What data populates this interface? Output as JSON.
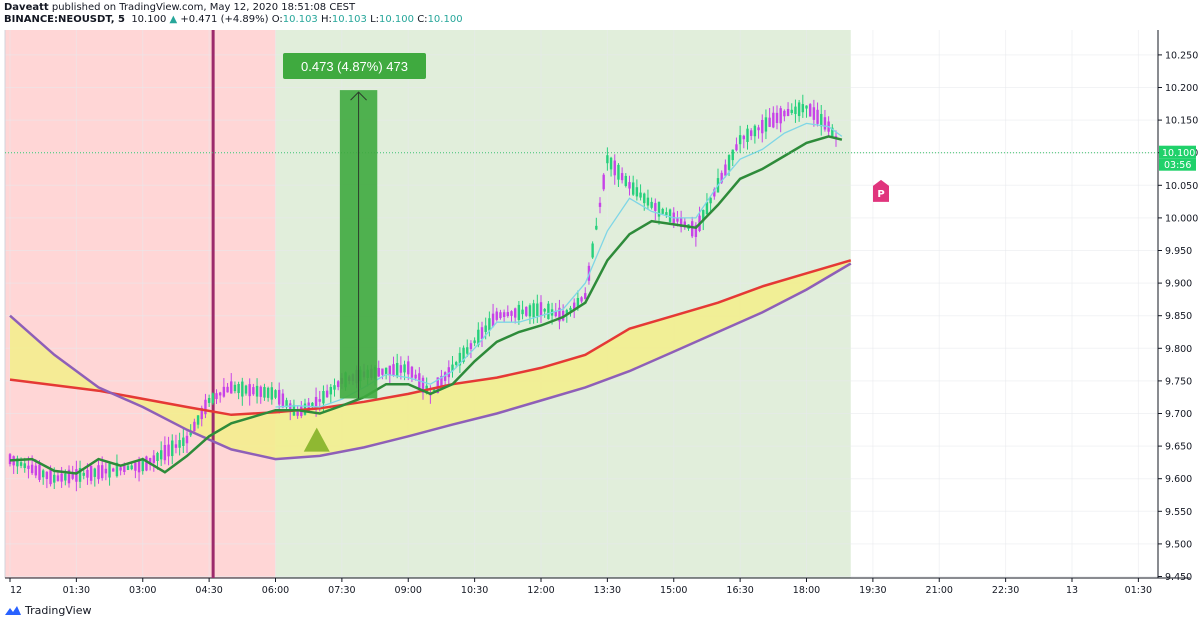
{
  "header": {
    "author": "Daveatt",
    "published_line": " published on TradingView.com, May 12, 2020 18:51:08 CEST",
    "symbol": "BINANCE:NEOUSDT, 5",
    "last": "10.100",
    "change": "+0.471 (+4.89%)",
    "open_label": "O:",
    "open": "10.103",
    "high_label": "H:",
    "high": "10.103",
    "low_label": "L:",
    "low": "10.100",
    "close_label": "C:",
    "close": "10.100"
  },
  "footer": {
    "brand": "TradingView",
    "logo_icon": "tradingview-logo-icon"
  },
  "colors": {
    "bull": "#26d07c",
    "bear": "#c743e8",
    "red_zone": "#ffd6d6",
    "green_zone": "#e1eedb",
    "ema_slow": "#e53935",
    "ema_purple": "#8e5fb8",
    "fill": "#f3ef8a",
    "ema_green": "#2e8b3a",
    "ema_cyan": "#7fd6e6",
    "session_line": "#9c2a6b",
    "measure": "#3faa3f",
    "signal_triangle": "#8fb832",
    "price_tag": "#1fd16a",
    "p_marker": "#e0357d"
  },
  "chart_data": {
    "type": "line",
    "title": "",
    "xlabel": "",
    "ylabel": "",
    "ylim": [
      9.43,
      10.275
    ],
    "x_ticks": [
      "12",
      "01:30",
      "03:00",
      "04:30",
      "06:00",
      "07:30",
      "09:00",
      "10:30",
      "12:00",
      "13:30",
      "15:00",
      "16:30",
      "18:00",
      "19:30",
      "21:00",
      "22:30",
      "13",
      "01:30"
    ],
    "y_ticks": [
      "10.250",
      "10.200",
      "10.150",
      "10.100",
      "10.050",
      "10.000",
      "9.950",
      "9.900",
      "9.850",
      "9.800",
      "9.750",
      "9.700",
      "9.650",
      "9.600",
      "9.550",
      "9.500",
      "9.450"
    ],
    "current_price_label": "10.100",
    "countdown_label": "03:56",
    "measure_label": "0.473 (4.87%) 473",
    "measure_range": [
      9.723,
      10.196
    ],
    "zones": [
      {
        "name": "bearish-session",
        "from": "12",
        "to": "06:00"
      },
      {
        "name": "bullish-session",
        "from": "06:00",
        "to": "19:00"
      }
    ],
    "session_marker_time": "04:30",
    "signal_marker": {
      "shape": "triangle-up",
      "time": "07:00",
      "price": 9.66
    },
    "pivot_marker": {
      "text": "P",
      "time": "20:00",
      "price": 10.04
    },
    "series": [
      {
        "key": "ema_red",
        "points": [
          [
            0,
            9.752
          ],
          [
            2,
            9.735
          ],
          [
            4,
            9.71
          ],
          [
            5,
            9.698
          ],
          [
            6,
            9.702
          ],
          [
            7,
            9.708
          ],
          [
            8,
            9.718
          ],
          [
            9,
            9.73
          ],
          [
            10,
            9.745
          ],
          [
            11,
            9.755
          ],
          [
            12,
            9.77
          ],
          [
            13,
            9.79
          ],
          [
            13.5,
            9.81
          ],
          [
            14,
            9.83
          ],
          [
            15,
            9.85
          ],
          [
            16,
            9.87
          ],
          [
            17,
            9.895
          ],
          [
            18,
            9.915
          ],
          [
            19,
            9.935
          ]
        ]
      },
      {
        "key": "ema_purple",
        "points": [
          [
            0,
            9.85
          ],
          [
            1,
            9.79
          ],
          [
            2,
            9.74
          ],
          [
            3,
            9.71
          ],
          [
            4,
            9.675
          ],
          [
            5,
            9.645
          ],
          [
            6,
            9.63
          ],
          [
            7,
            9.635
          ],
          [
            8,
            9.648
          ],
          [
            9,
            9.665
          ],
          [
            10,
            9.683
          ],
          [
            11,
            9.7
          ],
          [
            12,
            9.72
          ],
          [
            13,
            9.74
          ],
          [
            14,
            9.765
          ],
          [
            15,
            9.795
          ],
          [
            16,
            9.825
          ],
          [
            17,
            9.855
          ],
          [
            18,
            9.89
          ],
          [
            19,
            9.93
          ]
        ]
      },
      {
        "key": "ema_green",
        "points": [
          [
            0,
            9.628
          ],
          [
            0.5,
            9.63
          ],
          [
            1,
            9.612
          ],
          [
            1.5,
            9.608
          ],
          [
            2,
            9.63
          ],
          [
            2.5,
            9.62
          ],
          [
            3,
            9.63
          ],
          [
            3.5,
            9.61
          ],
          [
            4,
            9.635
          ],
          [
            4.5,
            9.665
          ],
          [
            5,
            9.685
          ],
          [
            5.5,
            9.695
          ],
          [
            6,
            9.705
          ],
          [
            6.5,
            9.705
          ],
          [
            7,
            9.7
          ],
          [
            7.5,
            9.712
          ],
          [
            8,
            9.725
          ],
          [
            8.5,
            9.745
          ],
          [
            9,
            9.745
          ],
          [
            9.5,
            9.73
          ],
          [
            10,
            9.745
          ],
          [
            10.5,
            9.78
          ],
          [
            11,
            9.81
          ],
          [
            11.5,
            9.825
          ],
          [
            12,
            9.835
          ],
          [
            12.5,
            9.848
          ],
          [
            13,
            9.87
          ],
          [
            13.5,
            9.935
          ],
          [
            14,
            9.975
          ],
          [
            14.5,
            9.995
          ],
          [
            15,
            9.99
          ],
          [
            15.5,
            9.985
          ],
          [
            16,
            10.02
          ],
          [
            16.5,
            10.06
          ],
          [
            17,
            10.075
          ],
          [
            17.5,
            10.095
          ],
          [
            18,
            10.115
          ],
          [
            18.5,
            10.125
          ],
          [
            18.8,
            10.12
          ]
        ]
      },
      {
        "key": "ema_cyan",
        "points": [
          [
            6,
            9.71
          ],
          [
            6.5,
            9.712
          ],
          [
            7,
            9.71
          ],
          [
            7.5,
            9.722
          ],
          [
            8,
            9.74
          ],
          [
            8.5,
            9.76
          ],
          [
            9,
            9.755
          ],
          [
            9.5,
            9.745
          ],
          [
            10,
            9.765
          ],
          [
            10.5,
            9.8
          ],
          [
            11,
            9.84
          ],
          [
            11.5,
            9.84
          ],
          [
            12,
            9.85
          ],
          [
            12.5,
            9.86
          ],
          [
            13,
            9.9
          ],
          [
            13.5,
            9.98
          ],
          [
            14,
            10.03
          ],
          [
            14.5,
            10.01
          ],
          [
            15,
            10.0
          ],
          [
            15.5,
            10.0
          ],
          [
            16,
            10.05
          ],
          [
            16.5,
            10.09
          ],
          [
            17,
            10.105
          ],
          [
            17.5,
            10.13
          ],
          [
            18,
            10.145
          ],
          [
            18.5,
            10.14
          ],
          [
            18.8,
            10.125
          ]
        ]
      }
    ]
  }
}
